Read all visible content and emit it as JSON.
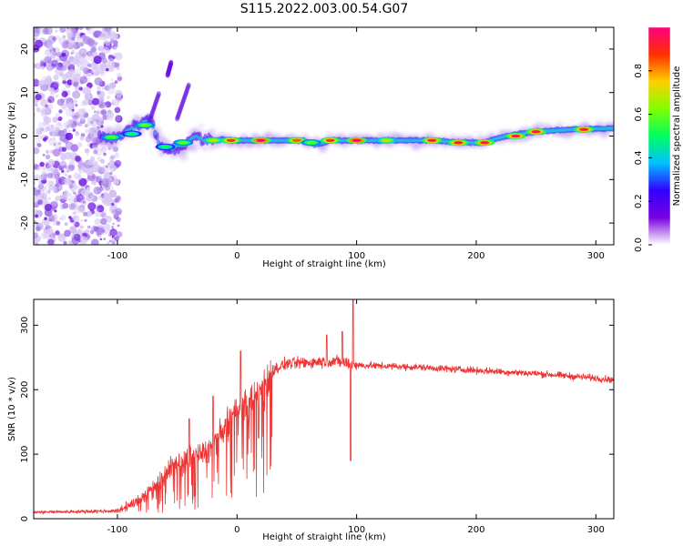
{
  "title": "S115.2022.003.00.54.G07",
  "chart_data": [
    {
      "type": "heatmap",
      "name": "spectrogram",
      "xlabel": "Height of straight line (km)",
      "ylabel": "Frequency (Hz)",
      "xlim": [
        -170,
        315
      ],
      "ylim": [
        -25,
        25
      ],
      "xticks": [
        -100,
        0,
        100,
        200,
        300
      ],
      "yticks": [
        -20,
        -10,
        0,
        10,
        20
      ],
      "colorbar": {
        "label": "Normalized spectral amplitude",
        "range": [
          0,
          1
        ],
        "ticks": [
          0.0,
          0.2,
          0.4,
          0.6,
          0.8
        ],
        "tick_labels": [
          "0.0",
          "0.2",
          "0.4",
          "0.6",
          "0.8"
        ],
        "colors": [
          "#ffffff",
          "#7a00e0",
          "#3000ff",
          "#00c0ff",
          "#00ff60",
          "#80ff00",
          "#ffd000",
          "#ff3000",
          "#ff0080"
        ]
      },
      "noise_region_x": [
        -170,
        -98
      ],
      "ridge": [
        {
          "x": -120,
          "y": 0.0
        },
        {
          "x": -100,
          "y": -0.5
        },
        {
          "x": -90,
          "y": 1.5
        },
        {
          "x": -80,
          "y": 3.0
        },
        {
          "x": -72,
          "y": 4.0
        },
        {
          "x": -65,
          "y": -2.5
        },
        {
          "x": -55,
          "y": -3.0
        },
        {
          "x": -45,
          "y": -2.0
        },
        {
          "x": -35,
          "y": 0.0
        },
        {
          "x": -25,
          "y": -1.0
        },
        {
          "x": -15,
          "y": -0.8
        },
        {
          "x": 0,
          "y": -1.0
        },
        {
          "x": 25,
          "y": -1.0
        },
        {
          "x": 55,
          "y": -1.0
        },
        {
          "x": 65,
          "y": -2.0
        },
        {
          "x": 80,
          "y": -1.0
        },
        {
          "x": 120,
          "y": -1.0
        },
        {
          "x": 165,
          "y": -1.0
        },
        {
          "x": 185,
          "y": -1.5
        },
        {
          "x": 205,
          "y": -1.5
        },
        {
          "x": 225,
          "y": 0.0
        },
        {
          "x": 250,
          "y": 1.0
        },
        {
          "x": 280,
          "y": 1.5
        },
        {
          "x": 315,
          "y": 1.8
        }
      ],
      "branches": [
        {
          "points": [
            {
              "x": -75,
              "y": 2.0
            },
            {
              "x": -65,
              "y": 10.0
            }
          ]
        },
        {
          "points": [
            {
              "x": -58,
              "y": 14.0
            },
            {
              "x": -55,
              "y": 17.0
            }
          ]
        },
        {
          "points": [
            {
              "x": -50,
              "y": 4.0
            },
            {
              "x": -40,
              "y": 12.0
            }
          ]
        }
      ],
      "hot_spots": [
        {
          "x": -105,
          "y": -0.3,
          "level": 0.6
        },
        {
          "x": -88,
          "y": 0.5,
          "level": 0.5
        },
        {
          "x": -77,
          "y": 2.5,
          "level": 0.6
        },
        {
          "x": -60,
          "y": -2.5,
          "level": 0.5
        },
        {
          "x": -45,
          "y": -1.5,
          "level": 0.6
        },
        {
          "x": -20,
          "y": -1.0,
          "level": 0.7
        },
        {
          "x": -5,
          "y": -1.0,
          "level": 0.9
        },
        {
          "x": 20,
          "y": -1.0,
          "level": 1.0
        },
        {
          "x": 50,
          "y": -1.0,
          "level": 0.85
        },
        {
          "x": 62,
          "y": -1.5,
          "level": 0.6
        },
        {
          "x": 78,
          "y": -1.0,
          "level": 0.9
        },
        {
          "x": 100,
          "y": -1.0,
          "level": 1.0
        },
        {
          "x": 125,
          "y": -1.0,
          "level": 0.7
        },
        {
          "x": 163,
          "y": -1.0,
          "level": 0.95
        },
        {
          "x": 185,
          "y": -1.5,
          "level": 0.95
        },
        {
          "x": 207,
          "y": -1.5,
          "level": 0.95
        },
        {
          "x": 233,
          "y": 0.0,
          "level": 0.95
        },
        {
          "x": 250,
          "y": 1.0,
          "level": 0.95
        },
        {
          "x": 290,
          "y": 1.5,
          "level": 0.95
        }
      ]
    },
    {
      "type": "line",
      "name": "snr",
      "xlabel": "Height of straight line (km)",
      "ylabel": "SNR (10 * v/v)",
      "xlim": [
        -170,
        315
      ],
      "ylim": [
        0,
        340
      ],
      "xticks": [
        -100,
        0,
        100,
        200,
        300
      ],
      "yticks": [
        0,
        100,
        200,
        300
      ],
      "color": "#ee3333",
      "envelope": [
        {
          "x": -170,
          "y": 10
        },
        {
          "x": -100,
          "y": 12
        },
        {
          "x": -85,
          "y": 25
        },
        {
          "x": -70,
          "y": 50
        },
        {
          "x": -55,
          "y": 80
        },
        {
          "x": -40,
          "y": 95
        },
        {
          "x": -25,
          "y": 105
        },
        {
          "x": -10,
          "y": 140
        },
        {
          "x": 0,
          "y": 170
        },
        {
          "x": 10,
          "y": 180
        },
        {
          "x": 20,
          "y": 200
        },
        {
          "x": 28,
          "y": 228
        },
        {
          "x": 40,
          "y": 240
        },
        {
          "x": 60,
          "y": 242
        },
        {
          "x": 80,
          "y": 245
        },
        {
          "x": 100,
          "y": 238
        },
        {
          "x": 150,
          "y": 235
        },
        {
          "x": 200,
          "y": 230
        },
        {
          "x": 250,
          "y": 225
        },
        {
          "x": 300,
          "y": 218
        },
        {
          "x": 315,
          "y": 215
        }
      ],
      "spikes": [
        {
          "x": -40,
          "y": 155
        },
        {
          "x": -20,
          "y": 190
        },
        {
          "x": 3,
          "y": 260
        },
        {
          "x": 18,
          "y": 125
        },
        {
          "x": 75,
          "y": 285
        },
        {
          "x": 88,
          "y": 290
        },
        {
          "x": 95,
          "y": 90
        },
        {
          "x": 97,
          "y": 345
        }
      ]
    }
  ]
}
